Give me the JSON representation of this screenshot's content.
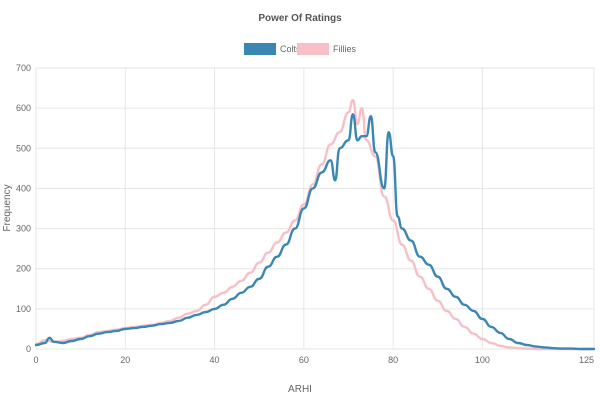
{
  "chart_data": {
    "type": "line",
    "title": "Power Of Ratings",
    "xlabel": "ARHI",
    "ylabel": "Frequency",
    "xlim": [
      0,
      125
    ],
    "ylim": [
      0,
      700
    ],
    "x_ticks": [
      "0",
      "20",
      "40",
      "60",
      "80",
      "100",
      "125"
    ],
    "y_ticks": [
      "0",
      "100",
      "200",
      "300",
      "400",
      "500",
      "600",
      "700"
    ],
    "grid": true,
    "legend_position": "top-center",
    "series": [
      {
        "name": "Colts",
        "color": "#3a87b4",
        "x": [
          0,
          2,
          3,
          4,
          6,
          8,
          10,
          12,
          14,
          16,
          18,
          20,
          22,
          24,
          26,
          28,
          30,
          32,
          34,
          36,
          38,
          40,
          42,
          44,
          46,
          48,
          50,
          52,
          54,
          56,
          58,
          60,
          62,
          64,
          66,
          67,
          68,
          70,
          71,
          72,
          73,
          74,
          75,
          76,
          78,
          79,
          80,
          81,
          82,
          84,
          86,
          88,
          90,
          92,
          94,
          96,
          98,
          100,
          102,
          104,
          106,
          108,
          110,
          112,
          114,
          116,
          118,
          120,
          122,
          125
        ],
        "y": [
          10,
          15,
          28,
          18,
          15,
          20,
          25,
          32,
          38,
          42,
          45,
          50,
          52,
          55,
          58,
          62,
          65,
          70,
          78,
          85,
          92,
          100,
          110,
          125,
          140,
          155,
          175,
          205,
          230,
          260,
          300,
          350,
          400,
          440,
          470,
          420,
          500,
          520,
          585,
          520,
          530,
          530,
          580,
          490,
          400,
          540,
          480,
          330,
          300,
          270,
          230,
          210,
          180,
          150,
          130,
          110,
          95,
          75,
          55,
          40,
          25,
          15,
          10,
          6,
          4,
          2,
          1,
          1,
          0,
          0
        ]
      },
      {
        "name": "Fillies",
        "color": "#f7c0c8",
        "x": [
          0,
          2,
          4,
          6,
          8,
          10,
          12,
          14,
          16,
          18,
          20,
          22,
          24,
          26,
          28,
          30,
          32,
          34,
          36,
          38,
          40,
          42,
          44,
          46,
          48,
          50,
          52,
          54,
          56,
          58,
          60,
          62,
          64,
          66,
          68,
          70,
          71,
          72,
          73,
          74,
          76,
          78,
          80,
          82,
          84,
          86,
          88,
          90,
          92,
          94,
          96,
          98,
          100,
          102,
          104,
          106,
          108,
          110,
          112,
          114,
          116,
          118,
          120,
          122,
          125
        ],
        "y": [
          12,
          22,
          18,
          20,
          25,
          28,
          35,
          42,
          45,
          48,
          52,
          55,
          58,
          60,
          65,
          70,
          78,
          88,
          95,
          110,
          130,
          140,
          155,
          170,
          190,
          215,
          240,
          265,
          290,
          320,
          360,
          410,
          460,
          510,
          540,
          590,
          620,
          560,
          600,
          520,
          480,
          380,
          320,
          260,
          220,
          180,
          150,
          120,
          95,
          75,
          55,
          38,
          25,
          15,
          8,
          4,
          2,
          1,
          0,
          0,
          0,
          0,
          0,
          0,
          0
        ]
      }
    ]
  }
}
